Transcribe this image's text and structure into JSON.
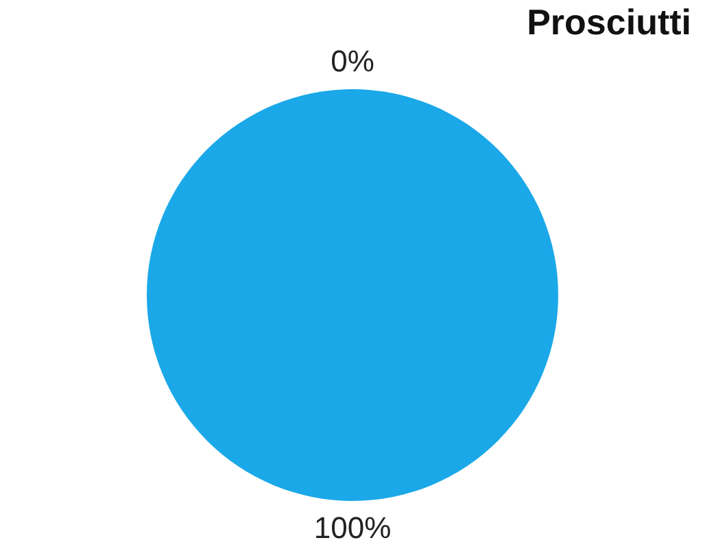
{
  "chart_data": {
    "type": "pie",
    "title": "Prosciutti",
    "categories": [
      null,
      null
    ],
    "values": [
      0,
      100
    ],
    "colors": [
      "#e8742a",
      "#1aa8e8"
    ],
    "value_labels": [
      "0%",
      "100%"
    ],
    "legend": false
  }
}
